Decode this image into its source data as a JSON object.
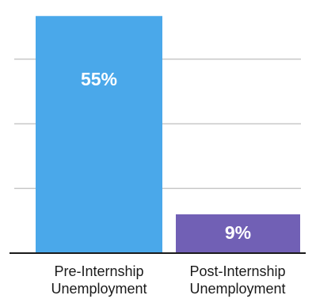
{
  "chart_data": {
    "type": "bar",
    "categories": [
      "Pre-Internship Unemployment",
      "Post-Internship Unemployment"
    ],
    "category_lines": [
      [
        "Pre-Internship",
        "Unemployment"
      ],
      [
        "Post-Internship",
        "Unemployment"
      ]
    ],
    "values": [
      55,
      9
    ],
    "data_labels": [
      "55%",
      "9%"
    ],
    "colors": [
      "#4aa8ea",
      "#7160b5"
    ],
    "grid_color": "#c8c8c8",
    "axis_color": "#1a1a1a",
    "ylim": [
      0,
      60
    ],
    "grid": true,
    "title": "",
    "xlabel": "",
    "ylabel": ""
  }
}
